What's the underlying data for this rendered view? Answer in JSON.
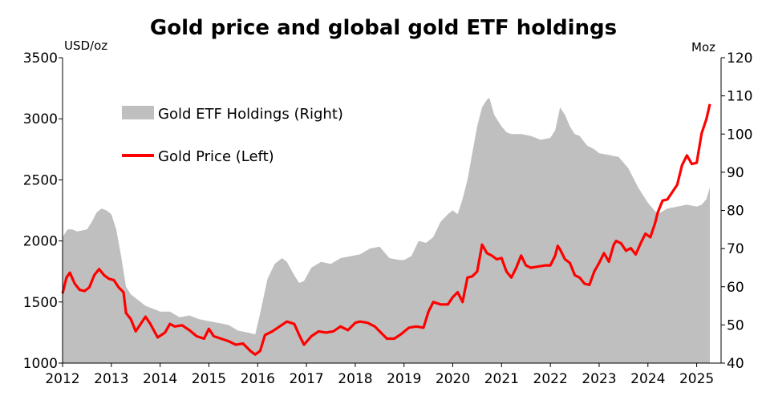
{
  "chart_data": {
    "type": "line",
    "title": "Gold price and global gold ETF holdings",
    "left_axis": {
      "unit": "USD/oz",
      "range": [
        1000,
        3500
      ],
      "ticks": [
        1000,
        1500,
        2000,
        2500,
        3000,
        3500
      ]
    },
    "right_axis": {
      "unit": "Moz",
      "range": [
        40,
        120
      ],
      "ticks": [
        40,
        50,
        60,
        70,
        80,
        90,
        100,
        110,
        120
      ]
    },
    "x_range": [
      2012,
      2025.5
    ],
    "x_ticks": [
      "2012",
      "2013",
      "2014",
      "2015",
      "2016",
      "2017",
      "2018",
      "2019",
      "2020",
      "2021",
      "2022",
      "2023",
      "2024",
      "2025"
    ],
    "legend_position": "top-left",
    "series": [
      {
        "name": "Gold ETF Holdings (Right)",
        "axis": "right",
        "style": "area",
        "color": "#bfbfbf",
        "x": [
          2012.0,
          2012.1,
          2012.2,
          2012.3,
          2012.5,
          2012.6,
          2012.7,
          2012.8,
          2012.9,
          2013.0,
          2013.1,
          2013.2,
          2013.3,
          2013.4,
          2013.5,
          2013.6,
          2013.7,
          2013.9,
          2014.0,
          2014.2,
          2014.4,
          2014.6,
          2014.8,
          2015.0,
          2015.2,
          2015.4,
          2015.6,
          2015.8,
          2015.95,
          2016.05,
          2016.2,
          2016.35,
          2016.5,
          2016.6,
          2016.75,
          2016.85,
          2016.95,
          2017.1,
          2017.3,
          2017.5,
          2017.7,
          2017.9,
          2018.1,
          2018.3,
          2018.5,
          2018.7,
          2018.9,
          2019.0,
          2019.15,
          2019.3,
          2019.45,
          2019.6,
          2019.75,
          2019.9,
          2020.0,
          2020.1,
          2020.2,
          2020.3,
          2020.4,
          2020.5,
          2020.6,
          2020.7,
          2020.75,
          2020.85,
          2021.0,
          2021.1,
          2021.2,
          2021.4,
          2021.6,
          2021.8,
          2022.0,
          2022.1,
          2022.2,
          2022.3,
          2022.4,
          2022.5,
          2022.6,
          2022.75,
          2022.9,
          2023.0,
          2023.2,
          2023.4,
          2023.6,
          2023.8,
          2024.0,
          2024.2,
          2024.4,
          2024.6,
          2024.8,
          2025.0,
          2025.1,
          2025.2,
          2025.27
        ],
        "values": [
          73,
          75,
          75,
          74.5,
          75,
          77,
          79.5,
          80.5,
          80,
          79,
          75,
          68,
          60,
          58,
          57,
          56,
          55,
          54,
          53.5,
          53.5,
          52,
          52.5,
          51.5,
          51,
          50.5,
          50,
          48.5,
          48,
          47.5,
          53,
          62,
          66,
          67.5,
          66.5,
          63,
          61,
          61.5,
          65,
          66.5,
          66,
          67.5,
          68,
          68.5,
          70,
          70.5,
          67.5,
          67,
          67,
          68,
          72,
          71.5,
          73,
          77,
          79,
          80,
          79,
          83,
          88,
          95,
          102,
          107,
          109,
          109.5,
          105,
          102,
          100.5,
          100,
          100,
          99.5,
          98.5,
          99,
          101,
          107,
          105,
          102,
          100,
          99.5,
          97,
          96,
          95,
          94.5,
          94,
          91,
          86,
          82,
          79,
          80.5,
          81,
          81.5,
          81,
          81.5,
          83,
          86
        ]
      },
      {
        "name": "Gold Price (Left)",
        "axis": "left",
        "style": "line",
        "color": "#ff0000",
        "x": [
          2012.0,
          2012.08,
          2012.15,
          2012.25,
          2012.35,
          2012.45,
          2012.55,
          2012.65,
          2012.75,
          2012.85,
          2012.95,
          2013.05,
          2013.15,
          2013.25,
          2013.3,
          2013.4,
          2013.5,
          2013.6,
          2013.7,
          2013.8,
          2013.95,
          2014.1,
          2014.2,
          2014.3,
          2014.45,
          2014.6,
          2014.75,
          2014.9,
          2015.0,
          2015.1,
          2015.25,
          2015.4,
          2015.55,
          2015.7,
          2015.85,
          2015.95,
          2016.05,
          2016.15,
          2016.3,
          2016.45,
          2016.6,
          2016.75,
          2016.85,
          2016.95,
          2017.1,
          2017.25,
          2017.4,
          2017.55,
          2017.7,
          2017.85,
          2018.0,
          2018.1,
          2018.25,
          2018.4,
          2018.55,
          2018.65,
          2018.8,
          2018.95,
          2019.1,
          2019.25,
          2019.4,
          2019.5,
          2019.6,
          2019.75,
          2019.9,
          2020.0,
          2020.1,
          2020.2,
          2020.3,
          2020.4,
          2020.5,
          2020.55,
          2020.6,
          2020.7,
          2020.8,
          2020.9,
          2021.0,
          2021.1,
          2021.2,
          2021.3,
          2021.4,
          2021.5,
          2021.6,
          2021.75,
          2021.9,
          2022.0,
          2022.1,
          2022.15,
          2022.2,
          2022.3,
          2022.4,
          2022.5,
          2022.6,
          2022.7,
          2022.8,
          2022.9,
          2023.0,
          2023.1,
          2023.2,
          2023.3,
          2023.35,
          2023.45,
          2023.55,
          2023.65,
          2023.75,
          2023.85,
          2023.95,
          2024.05,
          2024.15,
          2024.2,
          2024.3,
          2024.4,
          2024.5,
          2024.6,
          2024.7,
          2024.8,
          2024.9,
          2025.0,
          2025.1,
          2025.2,
          2025.27
        ],
        "values": [
          1570,
          1700,
          1740,
          1650,
          1600,
          1590,
          1620,
          1720,
          1770,
          1720,
          1690,
          1680,
          1620,
          1580,
          1410,
          1360,
          1260,
          1320,
          1380,
          1320,
          1210,
          1250,
          1320,
          1300,
          1310,
          1270,
          1220,
          1200,
          1280,
          1220,
          1200,
          1180,
          1150,
          1160,
          1100,
          1070,
          1100,
          1230,
          1260,
          1300,
          1340,
          1320,
          1230,
          1150,
          1220,
          1260,
          1250,
          1260,
          1300,
          1270,
          1330,
          1340,
          1330,
          1300,
          1240,
          1200,
          1200,
          1240,
          1290,
          1300,
          1290,
          1420,
          1500,
          1480,
          1480,
          1540,
          1580,
          1500,
          1700,
          1710,
          1750,
          1860,
          1970,
          1900,
          1880,
          1850,
          1860,
          1750,
          1700,
          1780,
          1880,
          1800,
          1780,
          1790,
          1800,
          1800,
          1880,
          1960,
          1930,
          1850,
          1820,
          1720,
          1700,
          1650,
          1640,
          1750,
          1820,
          1900,
          1830,
          1970,
          2000,
          1980,
          1920,
          1940,
          1890,
          1980,
          2060,
          2030,
          2150,
          2230,
          2330,
          2340,
          2400,
          2460,
          2620,
          2700,
          2630,
          2640,
          2880,
          3000,
          3120
        ]
      }
    ]
  }
}
